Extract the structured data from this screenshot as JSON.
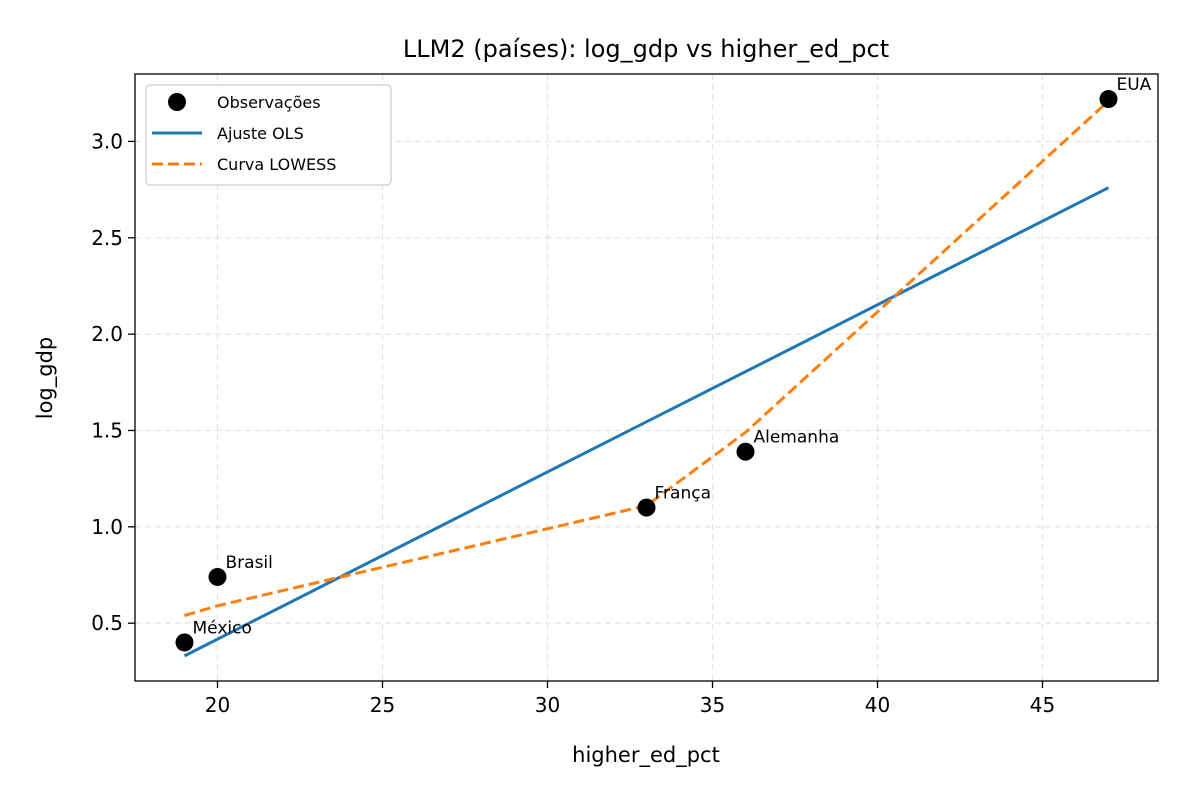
{
  "chart_data": {
    "type": "scatter",
    "title": "LLM2 (países): log_gdp vs higher_ed_pct",
    "xlabel": "higher_ed_pct",
    "ylabel": "log_gdp",
    "xlim": [
      17.5,
      48.5
    ],
    "ylim": [
      0.2,
      3.35
    ],
    "xticks": [
      20,
      25,
      30,
      35,
      40,
      45
    ],
    "yticks": [
      0.5,
      1.0,
      1.5,
      2.0,
      2.5,
      3.0
    ],
    "xtick_labels": [
      "20",
      "25",
      "30",
      "35",
      "40",
      "45"
    ],
    "ytick_labels": [
      "0.5",
      "1.0",
      "1.5",
      "2.0",
      "2.5",
      "3.0"
    ],
    "grid": true,
    "legend_position": "top-left",
    "legend": [
      "Observações",
      "Ajuste OLS",
      "Curva LOWESS"
    ],
    "points": [
      {
        "label": "México",
        "x": 19,
        "y": 0.4
      },
      {
        "label": "Brasil",
        "x": 20,
        "y": 0.74
      },
      {
        "label": "França",
        "x": 33,
        "y": 1.1
      },
      {
        "label": "Alemanha",
        "x": 36,
        "y": 1.39
      },
      {
        "label": "EUA",
        "x": 47,
        "y": 3.22
      }
    ],
    "series": [
      {
        "name": "Ajuste OLS",
        "kind": "line",
        "color": "#1f77b4",
        "style": "solid",
        "x": [
          19,
          47
        ],
        "y": [
          0.33,
          2.76
        ]
      },
      {
        "name": "Curva LOWESS",
        "kind": "line",
        "color": "#ff7f0e",
        "style": "dashed",
        "x": [
          19,
          20,
          33,
          36,
          47
        ],
        "y": [
          0.54,
          0.59,
          1.11,
          1.49,
          3.21
        ]
      }
    ],
    "colors": {
      "points": "#000000",
      "ols": "#1f77b4",
      "lowess": "#ff7f0e"
    }
  }
}
